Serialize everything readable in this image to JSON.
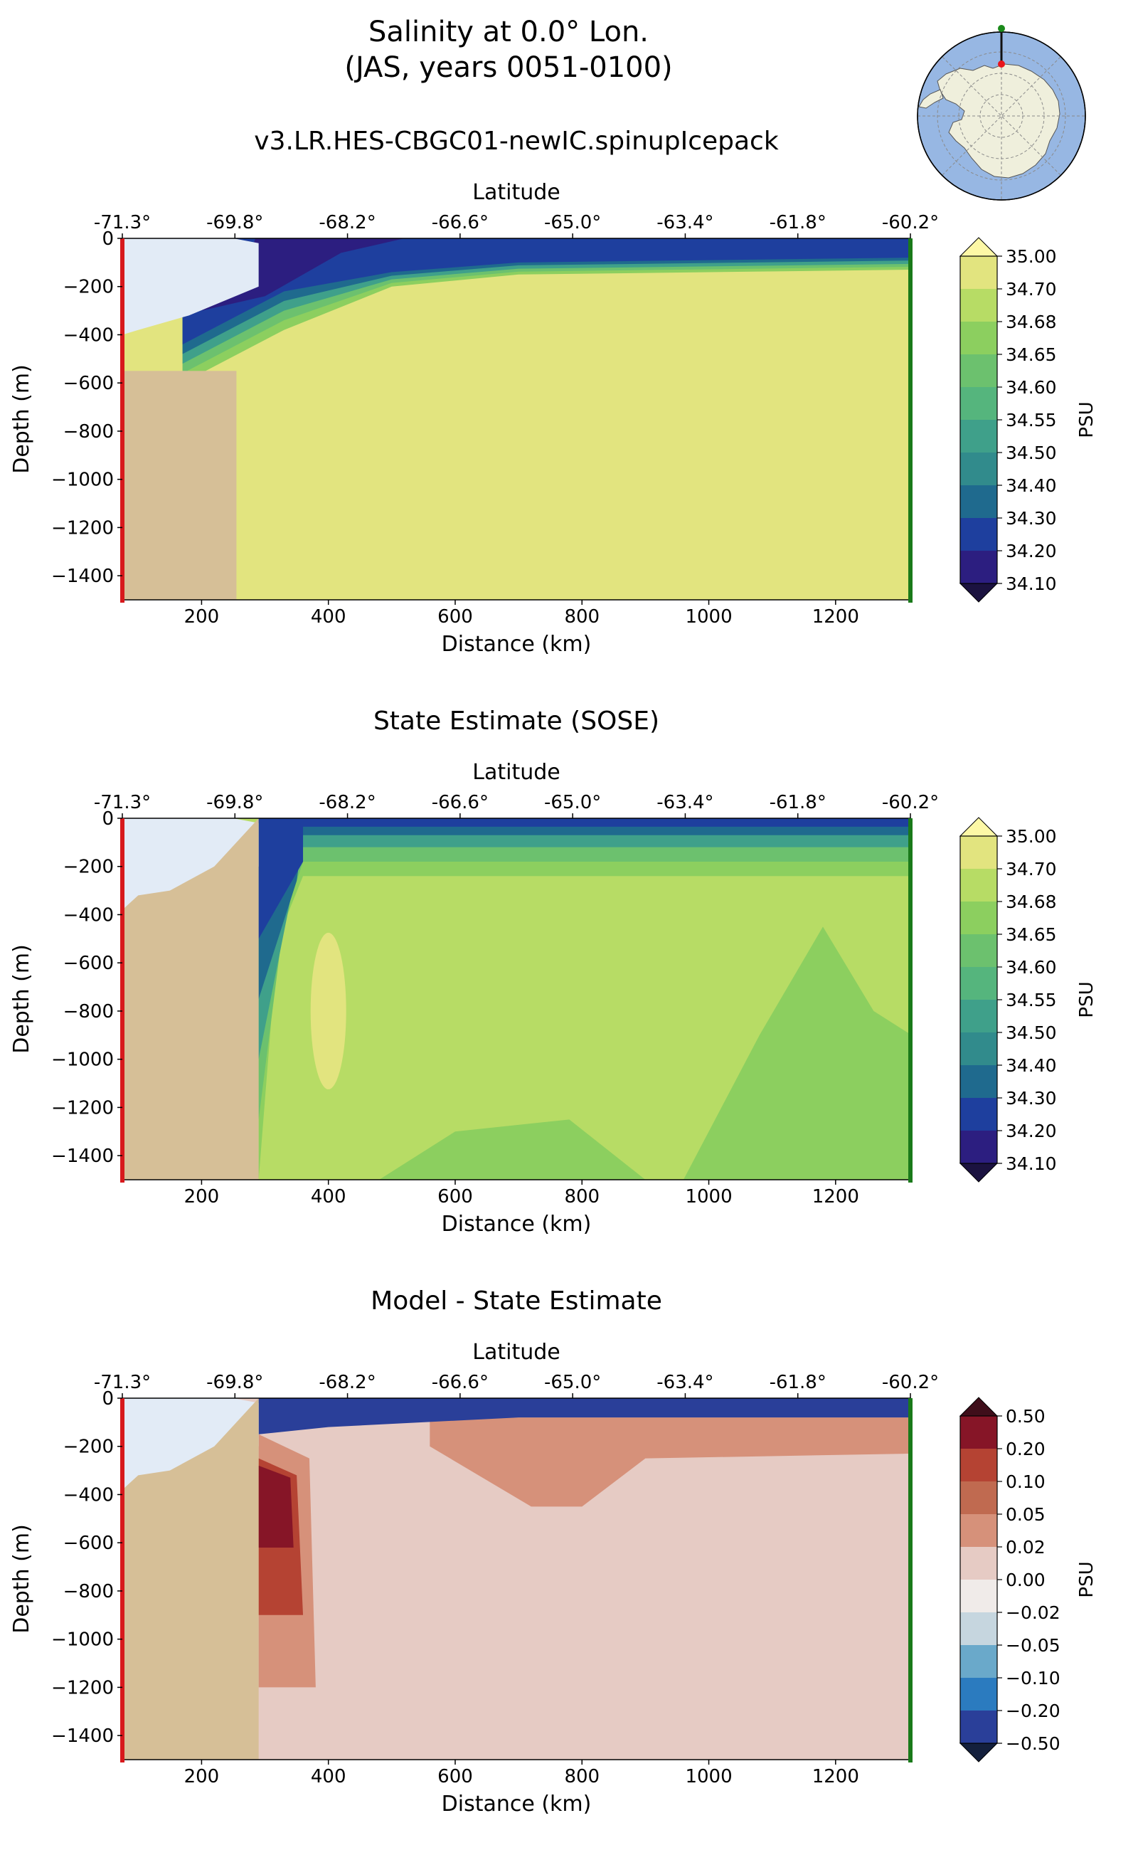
{
  "figure": {
    "title_line1": "Salinity at 0.0° Lon.",
    "title_line2": "(JAS, years 0051-0100)",
    "inset_map": {
      "description": "South polar stereographic map of Antarctica; transect line along 0.0° longitude",
      "ocean_color": "#97b7e3",
      "land_color": "#efefdc",
      "start_marker_color": "#e8141b",
      "end_marker_color": "#1b8a1b"
    }
  },
  "colors": {
    "land": "#d6bf97",
    "ice_shelf": "#e2ebf6",
    "start_bar": "#d7191c",
    "end_bar": "#1a7a1a"
  },
  "chart_data": [
    {
      "type": "contourf",
      "title": "v3.LR.HES-CBGC01-newIC.spinupIcepack",
      "xlabel": "Distance (km)",
      "ylabel": "Depth (m)",
      "top_axis_label": "Latitude",
      "top_ticks": [
        "-71.3°",
        "-69.8°",
        "-68.2°",
        "-66.6°",
        "-65.0°",
        "-63.4°",
        "-61.8°",
        "-60.2°"
      ],
      "x_ticks": [
        200,
        400,
        600,
        800,
        1000,
        1200
      ],
      "y_ticks": [
        0,
        -200,
        -400,
        -600,
        -800,
        -1000,
        -1200,
        -1400
      ],
      "xlim": [
        75,
        1318
      ],
      "ylim": [
        -1500,
        0
      ],
      "colorbar": {
        "label": "PSU",
        "levels": [
          "34.10",
          "34.20",
          "34.30",
          "34.40",
          "34.50",
          "34.55",
          "34.60",
          "34.65",
          "34.68",
          "34.70",
          "35.00"
        ],
        "colors": [
          "#2c1e80",
          "#1e3f9e",
          "#1f6a8e",
          "#318b8c",
          "#3fa08a",
          "#55b57d",
          "#6cc16e",
          "#8ccf5f",
          "#b7dc65",
          "#e2e47f"
        ],
        "extend_low_color": "#1b1240",
        "extend_high_color": "#fdf8a6"
      },
      "fields": {
        "deep_value_psu": "34.70-35.00",
        "surface_value_psu": "34.10-34.20"
      }
    },
    {
      "type": "contourf",
      "title": "State Estimate (SOSE)",
      "xlabel": "Distance (km)",
      "ylabel": "Depth (m)",
      "top_axis_label": "Latitude",
      "top_ticks": [
        "-71.3°",
        "-69.8°",
        "-68.2°",
        "-66.6°",
        "-65.0°",
        "-63.4°",
        "-61.8°",
        "-60.2°"
      ],
      "x_ticks": [
        200,
        400,
        600,
        800,
        1000,
        1200
      ],
      "y_ticks": [
        0,
        -200,
        -400,
        -600,
        -800,
        -1000,
        -1200,
        -1400
      ],
      "xlim": [
        75,
        1318
      ],
      "ylim": [
        -1500,
        0
      ],
      "colorbar": {
        "label": "PSU",
        "levels": [
          "34.10",
          "34.20",
          "34.30",
          "34.40",
          "34.50",
          "34.55",
          "34.60",
          "34.65",
          "34.68",
          "34.70",
          "35.00"
        ],
        "colors": [
          "#2c1e80",
          "#1e3f9e",
          "#1f6a8e",
          "#318b8c",
          "#3fa08a",
          "#55b57d",
          "#6cc16e",
          "#8ccf5f",
          "#b7dc65",
          "#e2e47f"
        ],
        "extend_low_color": "#1b1240",
        "extend_high_color": "#fdf8a6"
      },
      "fields": {
        "deep_value_psu": "34.65-34.70",
        "surface_value_psu": "34.20-34.40"
      }
    },
    {
      "type": "contourf",
      "title": "Model - State Estimate",
      "xlabel": "Distance (km)",
      "ylabel": "Depth (m)",
      "top_axis_label": "Latitude",
      "top_ticks": [
        "-71.3°",
        "-69.8°",
        "-68.2°",
        "-66.6°",
        "-65.0°",
        "-63.4°",
        "-61.8°",
        "-60.2°"
      ],
      "x_ticks": [
        200,
        400,
        600,
        800,
        1000,
        1200
      ],
      "y_ticks": [
        0,
        -200,
        -400,
        -600,
        -800,
        -1000,
        -1200,
        -1400
      ],
      "xlim": [
        75,
        1318
      ],
      "ylim": [
        -1500,
        0
      ],
      "colorbar": {
        "label": "PSU",
        "levels": [
          "−0.50",
          "−0.20",
          "−0.10",
          "−0.05",
          "−0.02",
          "0.00",
          "0.02",
          "0.05",
          "0.10",
          "0.20",
          "0.50"
        ],
        "colors": [
          "#2a3f99",
          "#2b7bbf",
          "#6aa9ca",
          "#c6d6df",
          "#f0ebe9",
          "#e6cbc4",
          "#d6917a",
          "#c06a50",
          "#b54333",
          "#861527"
        ],
        "extend_low_color": "#14203d",
        "extend_high_color": "#3f0e1a"
      },
      "fields": {
        "deep_value_psu": "0.02-0.05",
        "surface_value_psu": "-0.50 to -0.20"
      }
    }
  ]
}
